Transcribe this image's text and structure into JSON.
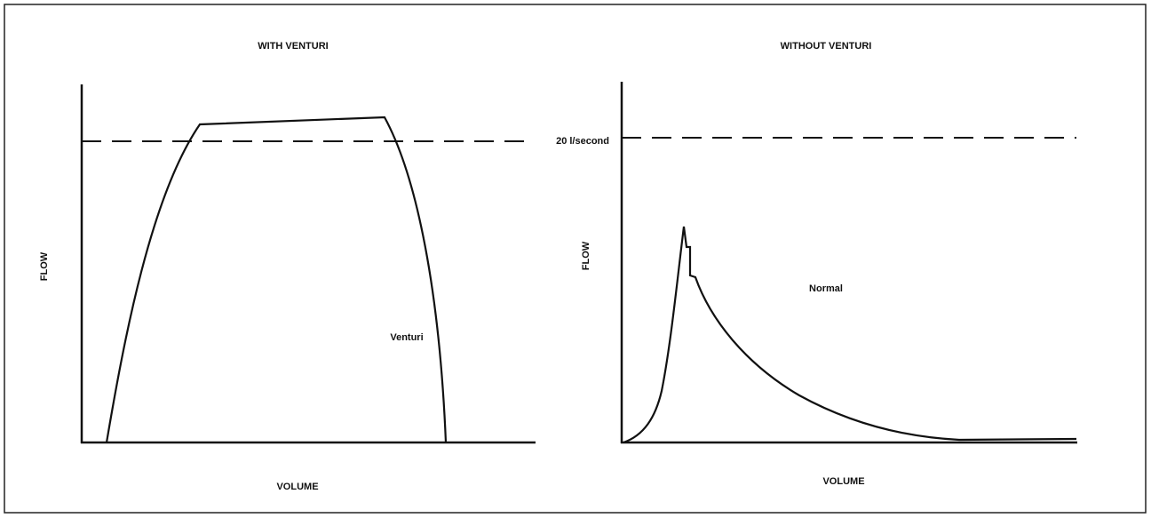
{
  "threshold_label": "20 l/second",
  "panels": [
    {
      "title": "WITH VENTURI",
      "y_label": "FLOW",
      "x_label": "VOLUME",
      "curve_label": "Venturi"
    },
    {
      "title": "WITHOUT VENTURI",
      "y_label": "FLOW",
      "x_label": "VOLUME",
      "curve_label": "Normal"
    }
  ]
}
